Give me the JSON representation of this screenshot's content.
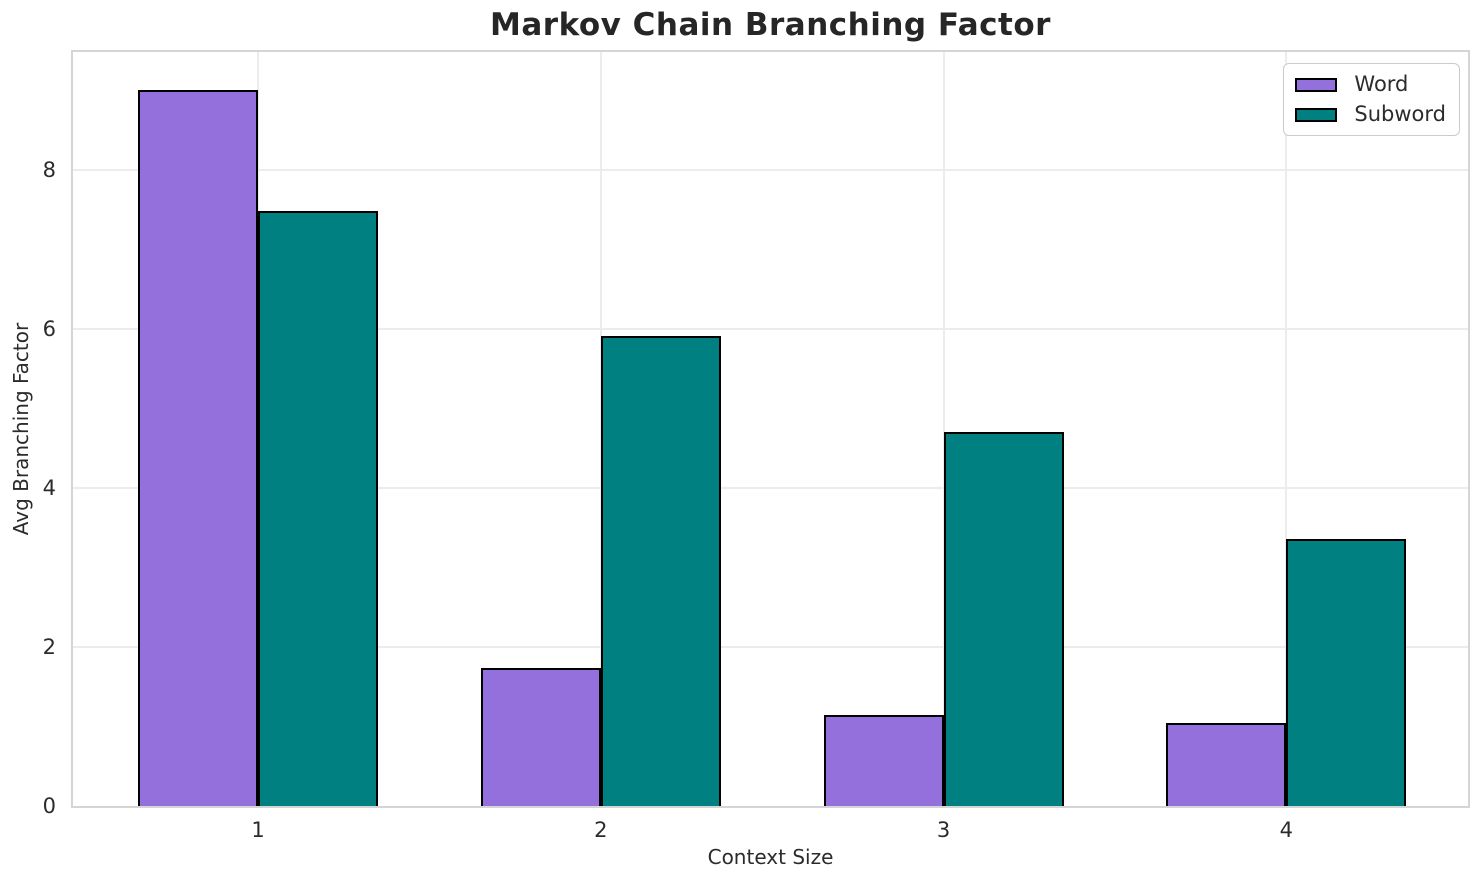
{
  "chart_data": {
    "type": "bar",
    "title": "Markov Chain Branching Factor",
    "xlabel": "Context Size",
    "ylabel": "Avg Branching Factor",
    "categories": [
      "1",
      "2",
      "3",
      "4"
    ],
    "series": [
      {
        "name": "Word",
        "color": "#9370DB",
        "values": [
          9.0,
          1.74,
          1.15,
          1.04
        ]
      },
      {
        "name": "Subword",
        "color": "#008080",
        "values": [
          7.48,
          5.91,
          4.7,
          3.36
        ]
      }
    ],
    "bar_edge_color": "#000000",
    "ylim": [
      0,
      9.48
    ],
    "yticks": [
      0,
      2,
      4,
      6,
      8
    ],
    "grid": true,
    "legend_position": "upper right"
  }
}
